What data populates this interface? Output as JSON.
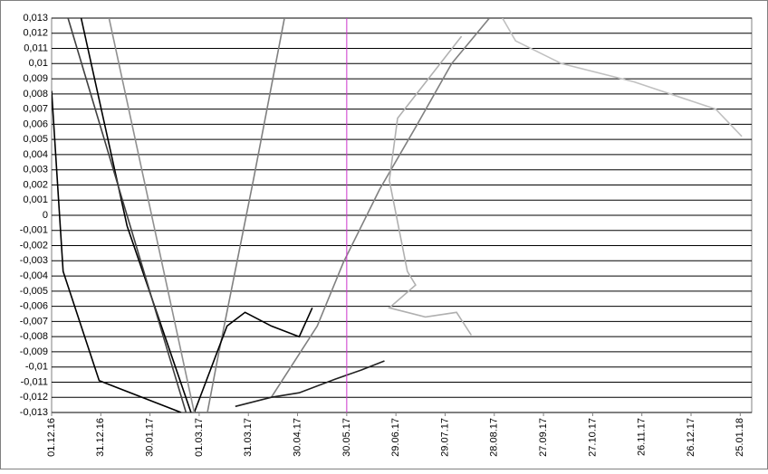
{
  "chart_data": {
    "type": "line",
    "xlim": [
      "2016-12-01",
      "2018-02-01"
    ],
    "xticks": [
      {
        "value": "2016-12-01",
        "label": "01.12.16"
      },
      {
        "value": "2016-12-31",
        "label": "31.12.16"
      },
      {
        "value": "2017-01-30",
        "label": "30.01.17"
      },
      {
        "value": "2017-03-01",
        "label": "01.03.17"
      },
      {
        "value": "2017-03-31",
        "label": "31.03.17"
      },
      {
        "value": "2017-04-30",
        "label": "30.04.17"
      },
      {
        "value": "2017-05-30",
        "label": "30.05.17"
      },
      {
        "value": "2017-06-29",
        "label": "29.06.17"
      },
      {
        "value": "2017-07-29",
        "label": "29.07.17"
      },
      {
        "value": "2017-08-28",
        "label": "28.08.17"
      },
      {
        "value": "2017-09-27",
        "label": "27.09.17"
      },
      {
        "value": "2017-10-27",
        "label": "27.10.17"
      },
      {
        "value": "2017-11-26",
        "label": "26.11.17"
      },
      {
        "value": "2017-12-26",
        "label": "26.12.17"
      },
      {
        "value": "2018-01-25",
        "label": "25.01.18"
      }
    ],
    "ylim": [
      -0.013,
      0.013
    ],
    "yticks": [
      {
        "value": 0.013,
        "label": "0,013"
      },
      {
        "value": 0.012,
        "label": "0,012"
      },
      {
        "value": 0.011,
        "label": "0,011"
      },
      {
        "value": 0.01,
        "label": "0,01"
      },
      {
        "value": 0.009,
        "label": "0,009"
      },
      {
        "value": 0.008,
        "label": "0,008"
      },
      {
        "value": 0.007,
        "label": "0,007"
      },
      {
        "value": 0.006,
        "label": "0,006"
      },
      {
        "value": 0.005,
        "label": "0,005"
      },
      {
        "value": 0.004,
        "label": "0,004"
      },
      {
        "value": 0.003,
        "label": "0,003"
      },
      {
        "value": 0.002,
        "label": "0,002"
      },
      {
        "value": 0.001,
        "label": "0,001"
      },
      0,
      {
        "value": -0.001,
        "label": "-0,001"
      },
      {
        "value": -0.002,
        "label": "-0,002"
      },
      {
        "value": -0.003,
        "label": "-0,003"
      },
      {
        "value": -0.004,
        "label": "-0,004"
      },
      {
        "value": -0.005,
        "label": "-0,005"
      },
      {
        "value": -0.006,
        "label": "-0,006"
      },
      {
        "value": -0.007,
        "label": "-0,007"
      },
      {
        "value": -0.008,
        "label": "-0,008"
      },
      {
        "value": -0.009,
        "label": "-0,009"
      },
      {
        "value": -0.01,
        "label": "-0,01"
      },
      {
        "value": -0.011,
        "label": "-0,011"
      },
      {
        "value": -0.012,
        "label": "-0,012"
      },
      {
        "value": -0.013,
        "label": "-0,013"
      }
    ],
    "grid": true,
    "marker_x": "2017-05-30",
    "marker_color": "#cc33cc",
    "series": [
      {
        "color": "#808080",
        "x": [
          "2017-04-14",
          "2017-05-12",
          "2017-05-28",
          "2017-06-19",
          "2017-07-11",
          "2017-08-02",
          "2017-08-25"
        ],
        "values": [
          -0.012,
          -0.0073,
          -0.0031,
          0.0017,
          0.0058,
          0.01,
          0.013
        ]
      },
      {
        "color": "#000000",
        "x": [
          "2016-12-19",
          "2017-01-16",
          "2017-02-24"
        ],
        "values": [
          0.013,
          -0.0007,
          -0.013
        ]
      },
      {
        "color": "#000000",
        "x": [
          "2016-12-01",
          "2016-12-08",
          "2016-12-30",
          "2017-02-18"
        ],
        "values": [
          0.0082,
          -0.0037,
          -0.0109,
          -0.013
        ]
      },
      {
        "color": "#808080",
        "x": [
          "2017-04-22",
          "2017-04-03",
          "2017-03-12",
          "2017-03-06"
        ],
        "values": [
          0.013,
          0.0023,
          -0.0096,
          -0.013
        ]
      },
      {
        "color": "#b0b0b0",
        "x": [
          "2017-08-08",
          "2017-06-30",
          "2017-06-25",
          "2017-07-06",
          "2017-07-11",
          "2017-06-25",
          "2017-07-17",
          "2017-08-05",
          "2017-08-14"
        ],
        "values": [
          0.0118,
          0.0064,
          0.0023,
          -0.0037,
          -0.0046,
          -0.0061,
          -0.0067,
          -0.0064,
          -0.0079
        ]
      },
      {
        "color": "#000000",
        "x": [
          "2017-02-26",
          "2017-03-18",
          "2017-03-29",
          "2017-04-14",
          "2017-05-01",
          "2017-05-09"
        ],
        "values": [
          -0.013,
          -0.0073,
          -0.0064,
          -0.0073,
          -0.008,
          -0.0061
        ]
      },
      {
        "color": "#202020",
        "x": [
          "2017-03-23",
          "2017-04-14",
          "2017-05-01",
          "2017-05-23",
          "2017-06-08",
          "2017-06-22"
        ],
        "values": [
          -0.0126,
          -0.012,
          -0.0117,
          -0.0108,
          -0.0102,
          -0.0096
        ]
      },
      {
        "color": "#c0c0c0",
        "x": [
          "2017-09-02",
          "2017-09-10",
          "2017-10-08",
          "2017-11-21",
          "2018-01-10",
          "2018-01-26"
        ],
        "values": [
          0.013,
          0.0115,
          0.01,
          0.0088,
          0.007,
          0.0052
        ]
      },
      {
        "color": "#909090",
        "x": [
          "2017-01-05",
          "2017-02-26"
        ],
        "values": [
          0.013,
          -0.013
        ]
      },
      {
        "color": "#404040",
        "x": [
          "2016-12-11",
          "2017-02-21"
        ],
        "values": [
          0.013,
          -0.013
        ]
      }
    ]
  }
}
